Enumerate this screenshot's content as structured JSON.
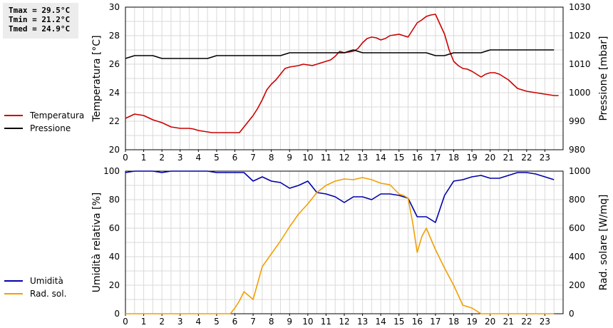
{
  "stats": {
    "tmax": "Tmax = 29.5°C",
    "tmin": "Tmin = 21.2°C",
    "tmed": "Tmed = 24.9°C"
  },
  "legend_top": [
    {
      "label": "Temperatura",
      "color": "#cc0000"
    },
    {
      "label": "Pressione",
      "color": "#000000"
    }
  ],
  "legend_bottom": [
    {
      "label": "Umidità",
      "color": "#0000aa"
    },
    {
      "label": "Rad. sol.",
      "color": "#f0a000"
    }
  ],
  "chart_data": [
    {
      "type": "line",
      "xlabel": "",
      "ylabel": "Temperatura [°C]",
      "y2label": "Pressione [mbar]",
      "xlim": [
        0,
        24
      ],
      "ylim": [
        20,
        30
      ],
      "y2lim": [
        980,
        1030
      ],
      "xticks": [
        "0",
        "1",
        "2",
        "3",
        "4",
        "5",
        "6",
        "7",
        "8",
        "9",
        "10",
        "11",
        "12",
        "13",
        "14",
        "15",
        "16",
        "17",
        "18",
        "19",
        "20",
        "21",
        "22",
        "23"
      ],
      "yticks": [
        20,
        22,
        24,
        26,
        28,
        30
      ],
      "y2ticks": [
        980,
        990,
        1000,
        1010,
        1020,
        1030
      ],
      "grid": true,
      "series": [
        {
          "name": "Temperatura",
          "axis": "left",
          "color": "#cc0000",
          "x": [
            0,
            0.25,
            0.5,
            0.75,
            1,
            1.25,
            1.5,
            1.75,
            2,
            2.25,
            2.5,
            2.75,
            3,
            3.25,
            3.5,
            3.75,
            4,
            4.25,
            4.5,
            4.75,
            5,
            5.25,
            5.5,
            5.75,
            6,
            6.25,
            6.5,
            6.75,
            7,
            7.25,
            7.5,
            7.75,
            8,
            8.25,
            8.5,
            8.75,
            9,
            9.25,
            9.5,
            9.75,
            10,
            10.25,
            10.5,
            10.75,
            11,
            11.25,
            11.5,
            11.75,
            12,
            12.25,
            12.5,
            12.75,
            13,
            13.25,
            13.5,
            13.75,
            14,
            14.25,
            14.5,
            14.75,
            15,
            15.25,
            15.5,
            15.75,
            16,
            16.25,
            16.5,
            16.75,
            17,
            17.25,
            17.5,
            17.75,
            18,
            18.25,
            18.5,
            18.75,
            19,
            19.25,
            19.5,
            19.75,
            20,
            20.25,
            20.5,
            20.75,
            21,
            21.25,
            21.5,
            21.75,
            22,
            22.25,
            22.5,
            22.75,
            23,
            23.25,
            23.5,
            23.75
          ],
          "values": [
            22.2,
            22.35,
            22.5,
            22.45,
            22.4,
            22.25,
            22.1,
            22.0,
            21.9,
            21.75,
            21.6,
            21.55,
            21.5,
            21.5,
            21.5,
            21.45,
            21.35,
            21.3,
            21.25,
            21.2,
            21.2,
            21.2,
            21.2,
            21.2,
            21.2,
            21.2,
            21.6,
            22.0,
            22.4,
            22.9,
            23.5,
            24.2,
            24.6,
            24.9,
            25.3,
            25.7,
            25.8,
            25.85,
            25.9,
            26.0,
            25.95,
            25.9,
            26.0,
            26.1,
            26.2,
            26.3,
            26.55,
            26.9,
            26.8,
            26.85,
            26.9,
            27.1,
            27.5,
            27.8,
            27.9,
            27.85,
            27.7,
            27.8,
            28.0,
            28.05,
            28.1,
            28.0,
            27.9,
            28.4,
            28.9,
            29.1,
            29.35,
            29.45,
            29.5,
            28.8,
            28.1,
            27.0,
            26.2,
            25.9,
            25.7,
            25.65,
            25.5,
            25.3,
            25.1,
            25.3,
            25.4,
            25.4,
            25.3,
            25.1,
            24.9,
            24.6,
            24.3,
            24.2,
            24.1,
            24.05,
            24.0,
            23.95,
            23.9,
            23.85,
            23.8,
            23.8
          ]
        },
        {
          "name": "Pressione",
          "axis": "right",
          "color": "#000000",
          "x": [
            0,
            0.5,
            1,
            1.5,
            2,
            2.5,
            3,
            3.5,
            4,
            4.5,
            5,
            5.5,
            6,
            6.5,
            7,
            7.5,
            8,
            8.5,
            9,
            9.5,
            10,
            10.5,
            11,
            11.5,
            12,
            12.5,
            13,
            13.5,
            14,
            14.5,
            15,
            15.5,
            16,
            16.5,
            17,
            17.5,
            18,
            18.5,
            19,
            19.5,
            20,
            20.5,
            21,
            21.5,
            22,
            22.5,
            23,
            23.5
          ],
          "values": [
            1012,
            1013,
            1013,
            1013,
            1012,
            1012,
            1012,
            1012,
            1012,
            1012,
            1013,
            1013,
            1013,
            1013,
            1013,
            1013,
            1013,
            1013,
            1014,
            1014,
            1014,
            1014,
            1014,
            1014,
            1014,
            1015,
            1014,
            1014,
            1014,
            1014,
            1014,
            1014,
            1014,
            1014,
            1013,
            1013,
            1014,
            1014,
            1014,
            1014,
            1015,
            1015,
            1015,
            1015,
            1015,
            1015,
            1015,
            1015
          ]
        }
      ]
    },
    {
      "type": "line",
      "xlabel": "",
      "ylabel": "Umidità relativa [%]",
      "y2label": "Rad. solare [W/mq]",
      "xlim": [
        0,
        24
      ],
      "ylim": [
        0,
        100
      ],
      "y2lim": [
        0,
        1000
      ],
      "xticks": [
        "0",
        "1",
        "2",
        "3",
        "4",
        "5",
        "6",
        "7",
        "8",
        "9",
        "10",
        "11",
        "12",
        "13",
        "14",
        "15",
        "16",
        "17",
        "18",
        "19",
        "20",
        "21",
        "22",
        "23"
      ],
      "yticks": [
        0,
        20,
        40,
        60,
        80,
        100
      ],
      "y2ticks": [
        0,
        200,
        400,
        600,
        800,
        1000
      ],
      "grid": true,
      "series": [
        {
          "name": "Umidità",
          "axis": "left",
          "color": "#0000aa",
          "x": [
            0,
            0.5,
            1,
            1.5,
            2,
            2.5,
            3,
            3.5,
            4,
            4.5,
            5,
            5.5,
            6,
            6.5,
            7,
            7.5,
            8,
            8.5,
            9,
            9.5,
            10,
            10.5,
            11,
            11.5,
            12,
            12.5,
            13,
            13.5,
            14,
            14.5,
            15,
            15.5,
            16,
            16.5,
            17,
            17.5,
            18,
            18.5,
            19,
            19.5,
            20,
            20.5,
            21,
            21.5,
            22,
            22.5,
            23,
            23.5
          ],
          "values": [
            99,
            100,
            100,
            100,
            99,
            100,
            100,
            100,
            100,
            100,
            99,
            99,
            99,
            99,
            93,
            96,
            93,
            92,
            88,
            90,
            93,
            85,
            84,
            82,
            78,
            82,
            82,
            80,
            84,
            84,
            83,
            81,
            68,
            68,
            64,
            83,
            93,
            94,
            96,
            97,
            95,
            95,
            97,
            99,
            99,
            98,
            96,
            94
          ]
        },
        {
          "name": "Rad. sol.",
          "axis": "right",
          "color": "#f0a000",
          "x": [
            0,
            0.5,
            1,
            1.5,
            2,
            2.5,
            3,
            3.5,
            4,
            4.5,
            5,
            5.5,
            5.75,
            6,
            6.25,
            6.5,
            7,
            7.5,
            8,
            8.5,
            9,
            9.5,
            10,
            10.5,
            11,
            11.5,
            12,
            12.5,
            13,
            13.5,
            14,
            14.5,
            15,
            15.25,
            15.5,
            15.75,
            16,
            16.25,
            16.5,
            17,
            17.5,
            18,
            18.5,
            19,
            19.5,
            20,
            20.5,
            21,
            21.5,
            22,
            22.5,
            23,
            23.5
          ],
          "values": [
            0,
            0,
            0,
            0,
            0,
            0,
            0,
            0,
            0,
            0,
            0,
            0,
            0,
            40,
            90,
            155,
            100,
            330,
            420,
            510,
            610,
            700,
            770,
            850,
            900,
            930,
            945,
            940,
            955,
            940,
            915,
            905,
            840,
            830,
            810,
            640,
            430,
            540,
            600,
            450,
            320,
            200,
            60,
            40,
            0,
            0,
            0,
            0,
            0,
            0,
            0,
            0,
            0
          ]
        }
      ]
    }
  ]
}
